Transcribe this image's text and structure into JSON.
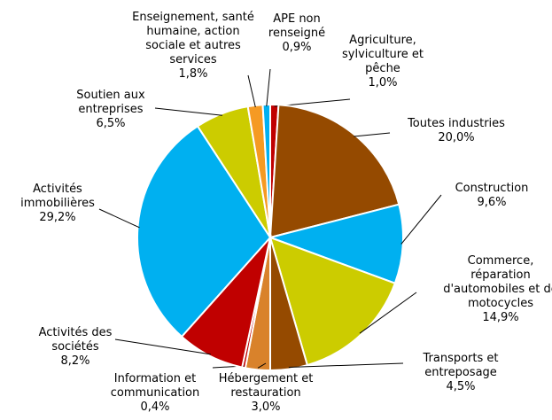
{
  "chart_data": {
    "type": "pie",
    "categories": [
      "Agriculture, sylviculture et pêche",
      "Toutes industries",
      "Construction",
      "Commerce, réparation d'automobiles et de motocycles",
      "Transports et entreposage",
      "Hébergement et restauration",
      "Information et communication",
      "Activités des sociétés",
      "Activités immobilières",
      "Soutien aux entreprises",
      "Enseignement, santé humaine, action sociale et autres services",
      "APE non renseigné"
    ],
    "values": [
      1.0,
      20.0,
      9.6,
      14.9,
      4.5,
      3.0,
      0.4,
      8.2,
      29.2,
      6.5,
      1.8,
      0.9
    ],
    "value_labels": [
      "1,0%",
      "20,0%",
      "9,6%",
      "14,9%",
      "4,5%",
      "3,0%",
      "0,4%",
      "8,2%",
      "29,2%",
      "6,5%",
      "1,8%",
      "0,9%"
    ],
    "colors": [
      "#c00000",
      "#954a00",
      "#00b0f0",
      "#cccc00",
      "#954a00",
      "#d9822b",
      "#c00000",
      "#c00000",
      "#00b0f0",
      "#cccc00",
      "#f59a23",
      "#00b0f0"
    ]
  }
}
